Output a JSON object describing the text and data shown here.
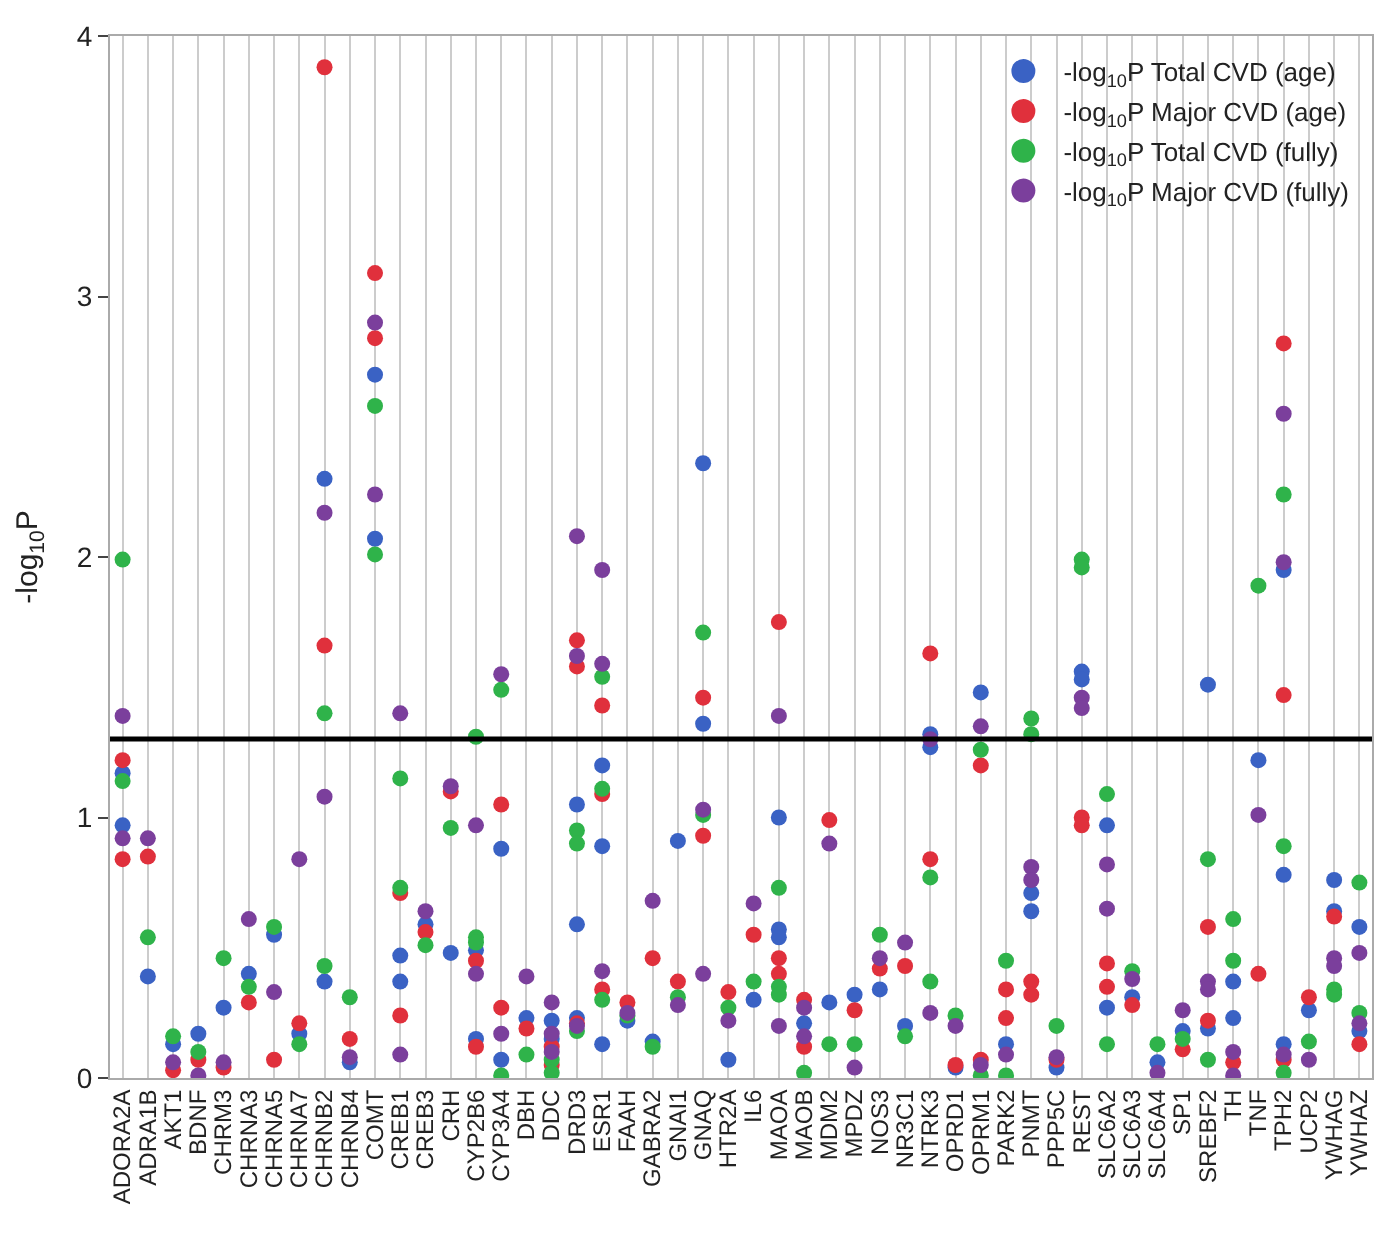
{
  "chart_data": {
    "type": "scatter",
    "ylabel": "-log$_{10}$P",
    "categories": [
      "ADORA2A",
      "ADRA1B",
      "AKT1",
      "BDNF",
      "CHRM3",
      "CHRNA3",
      "CHRNA5",
      "CHRNA7",
      "CHRNB2",
      "CHRNB4",
      "COMT",
      "CREB1",
      "CREB3",
      "CRH",
      "CYP2B6",
      "CYP3A4",
      "DBH",
      "DDC",
      "DRD3",
      "ESR1",
      "FAAH",
      "GABRA2",
      "GNAI1",
      "GNAQ",
      "HTR2A",
      "IL6",
      "MAOA",
      "MAOB",
      "MDM2",
      "MPDZ",
      "NOS3",
      "NR3C1",
      "NTRK3",
      "OPRD1",
      "OPRM1",
      "PARK2",
      "PNMT",
      "PPP5C",
      "REST",
      "SLC6A2",
      "SLC6A3",
      "SLC6A4",
      "SP1",
      "SREBF2",
      "TH",
      "TNF",
      "TPH2",
      "UCP2",
      "YWHAG",
      "YWHAZ"
    ],
    "series": [
      {
        "name": "-log$_{10}$P Total CVD (age)",
        "color": "#3a62c4",
        "x": [
          "ADORA2A",
          "ADORA2A",
          "ADRA1B",
          "AKT1",
          "BDNF",
          "CHRM3",
          "CHRNA3",
          "CHRNA5",
          "CHRNA7",
          "CHRNB2",
          "CHRNB2",
          "CHRNB4",
          "COMT",
          "COMT",
          "CREB1",
          "CREB1",
          "CREB3",
          "CRH",
          "CYP2B6",
          "CYP2B6",
          "CYP3A4",
          "CYP3A4",
          "DBH",
          "DDC",
          "DDC",
          "DRD3",
          "DRD3",
          "DRD3",
          "ESR1",
          "ESR1",
          "ESR1",
          "FAAH",
          "GABRA2",
          "GNAI1",
          "GNAQ",
          "GNAQ",
          "HTR2A",
          "IL6",
          "MAOA",
          "MAOA",
          "MAOA",
          "MAOB",
          "MDM2",
          "MPDZ",
          "NOS3",
          "NR3C1",
          "NTRK3",
          "NTRK3",
          "OPRD1",
          "OPRM1",
          "PARK2",
          "PNMT",
          "PNMT",
          "PPP5C",
          "REST",
          "REST",
          "SLC6A2",
          "SLC6A2",
          "SLC6A3",
          "SLC6A4",
          "SP1",
          "SREBF2",
          "SREBF2",
          "TH",
          "TH",
          "TNF",
          "TPH2",
          "TPH2",
          "TPH2",
          "UCP2",
          "YWHAG",
          "YWHAG",
          "YWHAZ",
          "YWHAZ"
        ],
        "values": [
          1.17,
          0.97,
          0.39,
          0.13,
          0.17,
          0.27,
          0.4,
          0.55,
          0.17,
          2.3,
          0.37,
          0.06,
          2.7,
          2.07,
          0.47,
          0.37,
          0.59,
          0.48,
          0.49,
          0.15,
          0.88,
          0.07,
          0.23,
          0.22,
          0.15,
          1.05,
          0.59,
          0.23,
          1.2,
          0.89,
          0.13,
          0.22,
          0.14,
          0.91,
          2.36,
          1.36,
          0.07,
          0.3,
          1.0,
          0.57,
          0.54,
          0.21,
          0.29,
          0.32,
          0.34,
          0.2,
          1.32,
          1.27,
          0.04,
          1.48,
          0.13,
          0.71,
          0.64,
          0.04,
          1.56,
          1.53,
          0.97,
          0.27,
          0.31,
          0.06,
          0.18,
          1.51,
          0.19,
          0.37,
          0.23,
          1.22,
          1.95,
          0.78,
          0.13,
          0.26,
          0.76,
          0.64,
          0.58,
          0.18
        ]
      },
      {
        "name": "-log$_{10}$P Major CVD (age)",
        "color": "#e0303c",
        "x": [
          "ADORA2A",
          "ADORA2A",
          "ADRA1B",
          "AKT1",
          "BDNF",
          "CHRM3",
          "CHRNA3",
          "CHRNA5",
          "CHRNA7",
          "CHRNB2",
          "CHRNB2",
          "CHRNB4",
          "COMT",
          "COMT",
          "CREB1",
          "CREB1",
          "CREB3",
          "CRH",
          "CYP2B6",
          "CYP2B6",
          "CYP3A4",
          "CYP3A4",
          "DBH",
          "DDC",
          "DDC",
          "DRD3",
          "DRD3",
          "DRD3",
          "ESR1",
          "ESR1",
          "ESR1",
          "FAAH",
          "GABRA2",
          "GNAI1",
          "GNAQ",
          "GNAQ",
          "HTR2A",
          "IL6",
          "MAOA",
          "MAOA",
          "MAOA",
          "MAOB",
          "MAOB",
          "MDM2",
          "MPDZ",
          "NOS3",
          "NR3C1",
          "NTRK3",
          "NTRK3",
          "OPRD1",
          "OPRM1",
          "OPRM1",
          "PARK2",
          "PARK2",
          "PNMT",
          "PNMT",
          "PPP5C",
          "REST",
          "REST",
          "SLC6A2",
          "SLC6A2",
          "SLC6A3",
          "SP1",
          "SREBF2",
          "SREBF2",
          "TH",
          "TNF",
          "TPH2",
          "TPH2",
          "TPH2",
          "UCP2",
          "YWHAG",
          "YWHAZ"
        ],
        "values": [
          1.22,
          0.84,
          0.85,
          0.03,
          0.07,
          0.04,
          0.29,
          0.07,
          0.21,
          3.88,
          1.66,
          0.15,
          3.09,
          2.84,
          0.71,
          0.24,
          0.56,
          1.1,
          0.45,
          0.12,
          1.05,
          0.27,
          0.19,
          0.12,
          0.05,
          1.68,
          1.58,
          0.21,
          1.43,
          1.09,
          0.34,
          0.29,
          0.46,
          0.37,
          1.46,
          0.93,
          0.33,
          0.55,
          1.75,
          0.46,
          0.4,
          0.3,
          0.12,
          0.99,
          0.26,
          0.42,
          0.43,
          1.63,
          0.84,
          0.05,
          1.2,
          0.07,
          0.34,
          0.23,
          0.37,
          0.32,
          0.07,
          1.0,
          0.97,
          0.44,
          0.35,
          0.28,
          0.11,
          0.58,
          0.22,
          0.06,
          0.4,
          2.82,
          1.47,
          0.07,
          0.31,
          0.62,
          0.13
        ]
      },
      {
        "name": "-log$_{10}$P Total CVD (fully)",
        "color": "#2fb34a",
        "x": [
          "ADORA2A",
          "ADORA2A",
          "ADRA1B",
          "AKT1",
          "BDNF",
          "CHRM3",
          "CHRNA3",
          "CHRNA5",
          "CHRNA7",
          "CHRNB2",
          "CHRNB2",
          "CHRNB4",
          "COMT",
          "COMT",
          "CREB1",
          "CREB1",
          "CREB3",
          "CRH",
          "CYP2B6",
          "CYP2B6",
          "CYP2B6",
          "CYP3A4",
          "CYP3A4",
          "DBH",
          "DDC",
          "DDC",
          "DRD3",
          "DRD3",
          "DRD3",
          "ESR1",
          "ESR1",
          "ESR1",
          "FAAH",
          "GABRA2",
          "GNAI1",
          "GNAQ",
          "GNAQ",
          "HTR2A",
          "IL6",
          "MAOA",
          "MAOA",
          "MAOA",
          "MAOB",
          "MDM2",
          "MPDZ",
          "NOS3",
          "NR3C1",
          "NTRK3",
          "NTRK3",
          "OPRD1",
          "OPRM1",
          "OPRM1",
          "PARK2",
          "PARK2",
          "PNMT",
          "PNMT",
          "PPP5C",
          "REST",
          "REST",
          "SLC6A2",
          "SLC6A2",
          "SLC6A3",
          "SLC6A4",
          "SP1",
          "SREBF2",
          "SREBF2",
          "TH",
          "TH",
          "TNF",
          "TPH2",
          "TPH2",
          "TPH2",
          "UCP2",
          "YWHAG",
          "YWHAG",
          "YWHAZ",
          "YWHAZ"
        ],
        "values": [
          1.99,
          1.14,
          0.54,
          0.16,
          0.1,
          0.46,
          0.35,
          0.58,
          0.13,
          1.4,
          0.43,
          0.31,
          2.58,
          2.01,
          1.15,
          0.73,
          0.51,
          0.96,
          1.31,
          0.54,
          0.52,
          1.49,
          0.01,
          0.09,
          0.07,
          0.02,
          0.95,
          0.9,
          0.18,
          1.54,
          1.11,
          0.3,
          0.24,
          0.12,
          0.31,
          1.71,
          1.01,
          0.27,
          0.37,
          0.73,
          0.35,
          0.32,
          0.02,
          0.13,
          0.13,
          0.55,
          0.16,
          0.77,
          0.37,
          0.24,
          1.26,
          0.01,
          0.45,
          0.01,
          1.38,
          1.32,
          0.2,
          1.99,
          1.96,
          1.09,
          0.13,
          0.41,
          0.13,
          0.15,
          0.84,
          0.07,
          0.61,
          0.45,
          1.89,
          2.24,
          0.89,
          0.02,
          0.14,
          0.34,
          0.32,
          0.75,
          0.25
        ]
      },
      {
        "name": "-log$_{10}$P Major CVD (fully)",
        "color": "#7b3f9c",
        "x": [
          "ADORA2A",
          "ADORA2A",
          "ADRA1B",
          "AKT1",
          "BDNF",
          "CHRM3",
          "CHRNA3",
          "CHRNA5",
          "CHRNA7",
          "CHRNB2",
          "CHRNB2",
          "CHRNB4",
          "COMT",
          "COMT",
          "CREB1",
          "CREB1",
          "CREB3",
          "CRH",
          "CYP2B6",
          "CYP2B6",
          "CYP3A4",
          "CYP3A4",
          "DBH",
          "DDC",
          "DDC",
          "DDC",
          "DRD3",
          "DRD3",
          "DRD3",
          "ESR1",
          "ESR1",
          "ESR1",
          "FAAH",
          "GABRA2",
          "GNAI1",
          "GNAQ",
          "GNAQ",
          "HTR2A",
          "IL6",
          "MAOA",
          "MAOA",
          "MAOB",
          "MAOB",
          "MDM2",
          "MPDZ",
          "NOS3",
          "NR3C1",
          "NTRK3",
          "NTRK3",
          "OPRD1",
          "OPRM1",
          "OPRM1",
          "PARK2",
          "PNMT",
          "PNMT",
          "PPP5C",
          "REST",
          "REST",
          "SLC6A2",
          "SLC6A2",
          "SLC6A3",
          "SLC6A4",
          "SP1",
          "SREBF2",
          "SREBF2",
          "TH",
          "TH",
          "TNF",
          "TPH2",
          "TPH2",
          "TPH2",
          "UCP2",
          "YWHAG",
          "YWHAG",
          "YWHAZ",
          "YWHAZ"
        ],
        "values": [
          1.39,
          0.92,
          0.92,
          0.06,
          0.01,
          0.06,
          0.61,
          0.33,
          0.84,
          2.17,
          1.08,
          0.08,
          2.9,
          2.24,
          1.4,
          0.09,
          0.64,
          1.12,
          0.97,
          0.4,
          1.55,
          0.17,
          0.39,
          0.29,
          0.17,
          0.1,
          2.08,
          1.62,
          0.2,
          1.95,
          1.59,
          0.41,
          0.25,
          0.68,
          0.28,
          1.03,
          0.4,
          0.22,
          0.67,
          1.39,
          0.2,
          0.27,
          0.16,
          0.9,
          0.04,
          0.46,
          0.52,
          1.3,
          0.25,
          0.2,
          1.35,
          0.05,
          0.09,
          0.81,
          0.76,
          0.08,
          1.46,
          1.42,
          0.82,
          0.65,
          0.38,
          0.02,
          0.26,
          0.37,
          0.34,
          0.1,
          0.01,
          1.01,
          2.55,
          1.98,
          0.09,
          0.07,
          0.46,
          0.43,
          0.48,
          0.21
        ]
      }
    ],
    "ylim": [
      0,
      4
    ],
    "yticks": [
      0,
      1,
      2,
      3,
      4
    ],
    "ref_lines": [
      {
        "axis": "y",
        "value": 1.301,
        "color": "#000000"
      }
    ],
    "grid": "x",
    "legend": "top right",
    "marker": "circle"
  }
}
